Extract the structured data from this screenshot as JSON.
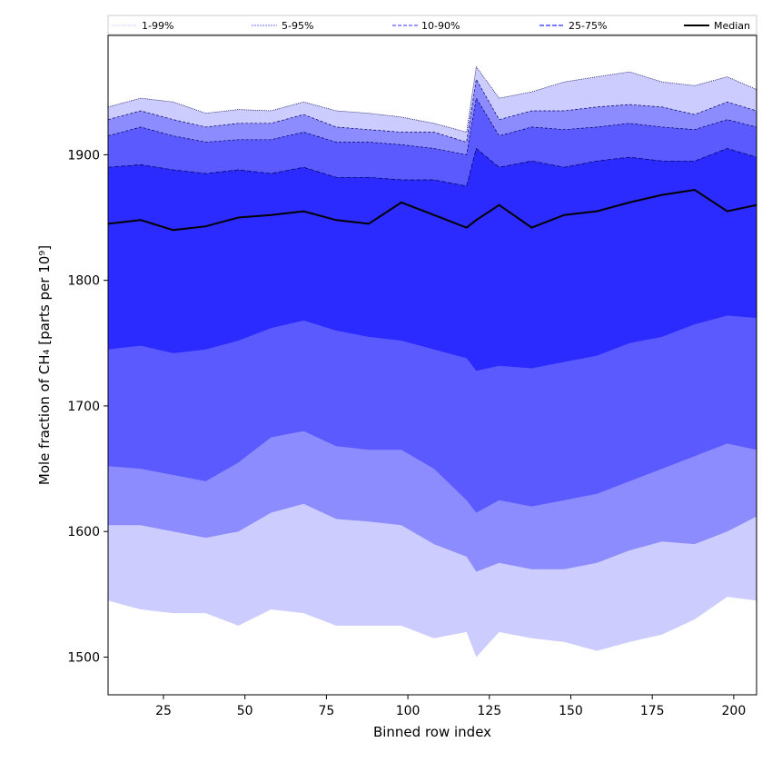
{
  "chart_data": {
    "type": "area",
    "title": "",
    "xlabel": "Binned row index",
    "ylabel": "Mole fraction of CH₄ [parts per 10⁹]",
    "xlim": [
      8,
      207
    ],
    "ylim": [
      1470,
      1995
    ],
    "x_ticks": [
      25,
      50,
      75,
      100,
      125,
      150,
      175,
      200
    ],
    "y_ticks": [
      1500,
      1600,
      1700,
      1800,
      1900
    ],
    "grid": false,
    "legend_placement": "top",
    "x": [
      8,
      18,
      28,
      38,
      48,
      58,
      68,
      78,
      88,
      98,
      108,
      118,
      121,
      128,
      138,
      148,
      158,
      168,
      178,
      188,
      198,
      207
    ],
    "bands": [
      {
        "name": "1-99%",
        "color": "#ccccff",
        "upper": [
          1938,
          1945,
          1942,
          1933,
          1936,
          1935,
          1942,
          1935,
          1933,
          1930,
          1925,
          1918,
          1970,
          1945,
          1950,
          1958,
          1962,
          1966,
          1958,
          1955,
          1962,
          1952
        ],
        "lower": [
          1545,
          1538,
          1535,
          1535,
          1525,
          1538,
          1535,
          1525,
          1525,
          1525,
          1515,
          1520,
          1500,
          1520,
          1515,
          1512,
          1505,
          1512,
          1518,
          1530,
          1548,
          1545
        ]
      },
      {
        "name": "5-95%",
        "color": "#8c8cff",
        "upper": [
          1928,
          1935,
          1928,
          1922,
          1925,
          1925,
          1932,
          1922,
          1920,
          1918,
          1918,
          1910,
          1960,
          1928,
          1935,
          1935,
          1938,
          1940,
          1938,
          1932,
          1942,
          1935
        ],
        "lower": [
          1605,
          1605,
          1600,
          1595,
          1600,
          1615,
          1622,
          1610,
          1608,
          1605,
          1590,
          1580,
          1568,
          1575,
          1570,
          1570,
          1575,
          1585,
          1592,
          1590,
          1600,
          1612
        ]
      },
      {
        "name": "10-90%",
        "color": "#5a5aff",
        "upper": [
          1915,
          1922,
          1915,
          1910,
          1912,
          1912,
          1918,
          1910,
          1910,
          1908,
          1905,
          1900,
          1945,
          1915,
          1922,
          1920,
          1922,
          1925,
          1922,
          1920,
          1928,
          1922
        ],
        "lower": [
          1652,
          1650,
          1645,
          1640,
          1655,
          1675,
          1680,
          1668,
          1665,
          1665,
          1650,
          1625,
          1615,
          1625,
          1620,
          1625,
          1630,
          1640,
          1650,
          1660,
          1670,
          1665
        ]
      },
      {
        "name": "25-75%",
        "color": "#2b2bff",
        "upper": [
          1890,
          1892,
          1888,
          1885,
          1888,
          1885,
          1890,
          1882,
          1882,
          1880,
          1880,
          1875,
          1905,
          1890,
          1895,
          1890,
          1895,
          1898,
          1895,
          1895,
          1905,
          1898
        ],
        "lower": [
          1745,
          1748,
          1742,
          1745,
          1752,
          1762,
          1768,
          1760,
          1755,
          1752,
          1745,
          1738,
          1728,
          1732,
          1730,
          1735,
          1740,
          1750,
          1755,
          1765,
          1772,
          1770
        ]
      }
    ],
    "median": {
      "name": "Median",
      "color": "#000000",
      "values": [
        1845,
        1848,
        1840,
        1843,
        1850,
        1852,
        1855,
        1848,
        1845,
        1862,
        1852,
        1842,
        1848,
        1860,
        1842,
        1852,
        1855,
        1862,
        1868,
        1872,
        1855,
        1860
      ]
    },
    "legend": [
      {
        "label": "1-99%",
        "style": "band",
        "color": "#ccccff"
      },
      {
        "label": "5-95%",
        "style": "band",
        "color": "#8c8cff"
      },
      {
        "label": "10-90%",
        "style": "band",
        "color": "#5a5aff"
      },
      {
        "label": "25-75%",
        "style": "band",
        "color": "#2b2bff"
      },
      {
        "label": "Median",
        "style": "line",
        "color": "#000000"
      }
    ]
  }
}
